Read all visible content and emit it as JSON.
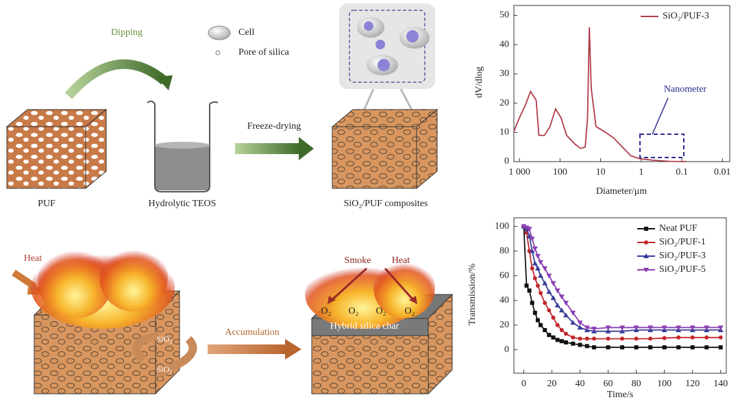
{
  "diagram": {
    "top": {
      "dipping": "Dipping",
      "cell": "Cell",
      "pore": "Pore of silica",
      "freeze_drying": "Freeze-drying",
      "puf": "PUF",
      "teos": "Hydrolytic TEOS",
      "composites": "SiO₂/PUF composites"
    },
    "bottom": {
      "heat_left": "Heat",
      "accumulation": "Accumulation",
      "smoke": "Smoke",
      "heat_right": "Heat",
      "o2": [
        "O₂",
        "O₂",
        "O₂",
        "O₂"
      ],
      "char": "Hybrid silica char",
      "sio2": [
        "SiO₂",
        "SiO₂"
      ]
    }
  },
  "chart_data": [
    {
      "type": "line",
      "xlabel": "Diameter/μm",
      "ylabel": "dV/dlog",
      "annotation": "Nanometer",
      "xscale": "log",
      "x": [
        1370,
        1000,
        730,
        532,
        388,
        332,
        242,
        177,
        129,
        94,
        69,
        43,
        31,
        24,
        21,
        19,
        17,
        13,
        7.5,
        4.7,
        2.9,
        1.8,
        1.1,
        0.52,
        0.2,
        0.078
      ],
      "series": [
        {
          "name": "SiO₂/PUF-3",
          "color": "#b03a48",
          "values": [
            10.4,
            15,
            19,
            24,
            21,
            9,
            9,
            12,
            18,
            15,
            9,
            6,
            4.5,
            5,
            15,
            46,
            25,
            12,
            10,
            8,
            5,
            2,
            1,
            0.5,
            0.1,
            0
          ]
        }
      ],
      "xlim": [
        1370,
        0.0066
      ],
      "ylim": [
        0,
        53.4
      ],
      "xticks": [
        {
          "value": 1000,
          "label": "1 000"
        },
        100,
        10,
        1,
        0.1,
        0.01
      ],
      "yticks": [
        0,
        10,
        20,
        30,
        40,
        50
      ],
      "legend": "upper right"
    },
    {
      "type": "line",
      "xlabel": "Time/s",
      "ylabel": "Transmission/%",
      "x": [
        0,
        2,
        4,
        6,
        8,
        10,
        12,
        15,
        18,
        21,
        24,
        27,
        30,
        35,
        40,
        45,
        50,
        60,
        70,
        80,
        90,
        100,
        110,
        120,
        130,
        140
      ],
      "series": [
        {
          "name": "Neat PUF",
          "color": "#111111",
          "marker": "s",
          "values": [
            100,
            52,
            48,
            38,
            30,
            24,
            20,
            16,
            12,
            10,
            8,
            7,
            6,
            5,
            4,
            3,
            2,
            2,
            2,
            2,
            2,
            2,
            2,
            2,
            2,
            2
          ]
        },
        {
          "name": "SiO₂/PUF-1",
          "color": "#c1272d",
          "marker": "o",
          "values": [
            100,
            95,
            80,
            66,
            58,
            52,
            46,
            38,
            32,
            26,
            20,
            16,
            13,
            10,
            9,
            9,
            9,
            9,
            9,
            9,
            9,
            9.5,
            10,
            10,
            10,
            10
          ]
        },
        {
          "name": "SiO₂/PUF-3",
          "color": "#3b3f99",
          "marker": "^",
          "values": [
            100,
            98,
            92,
            80,
            70,
            66,
            60,
            54,
            47,
            42,
            36,
            32,
            28,
            22,
            18,
            16,
            15,
            15,
            15,
            16,
            16,
            16,
            16,
            16,
            16,
            16
          ]
        },
        {
          "name": "SiO₂/PUF-5",
          "color": "#8a3fb5",
          "marker": "v",
          "values": [
            100,
            99,
            98,
            90,
            82,
            76,
            71,
            66,
            60,
            54,
            48,
            43,
            38,
            30,
            22,
            18,
            17,
            18,
            18,
            18,
            18,
            18,
            18,
            18,
            18,
            18
          ]
        }
      ],
      "xlim": [
        -7,
        144
      ],
      "ylim": [
        -19,
        107
      ],
      "xticks": [
        0,
        20,
        40,
        60,
        80,
        100,
        120,
        140
      ],
      "yticks": [
        0,
        20,
        40,
        60,
        80,
        100
      ],
      "legend": "upper right"
    }
  ]
}
